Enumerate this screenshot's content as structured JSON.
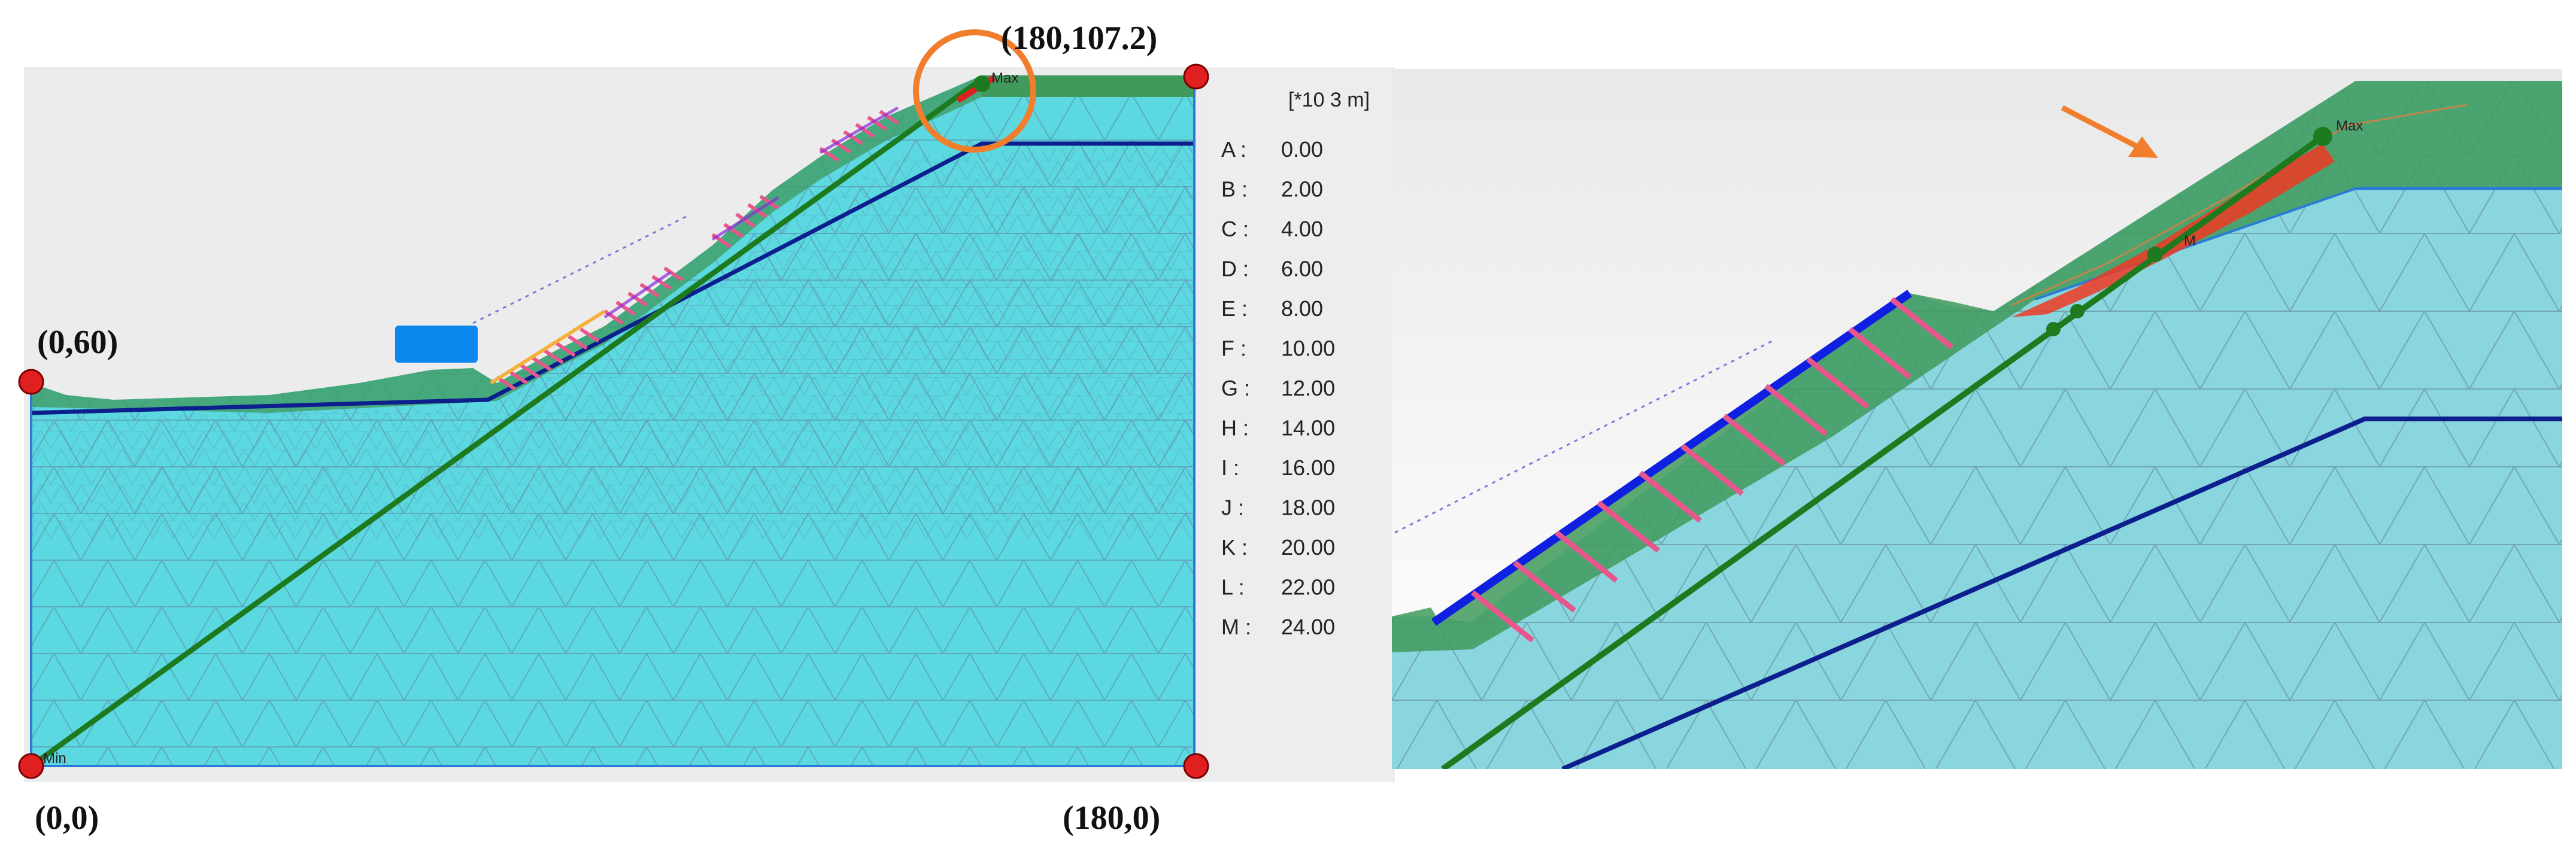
{
  "left_panel": {
    "coordinates": {
      "top_left": "(0,60)",
      "top_right": "(180,107.2)",
      "bottom_left": "(0,0)",
      "bottom_right": "(180,0)"
    },
    "min_label": "Min",
    "max_label": "Max",
    "legend": {
      "unit": "[*10 3 m]",
      "entries": [
        {
          "key": "A",
          "value": "0.00"
        },
        {
          "key": "B",
          "value": "2.00"
        },
        {
          "key": "C",
          "value": "4.00"
        },
        {
          "key": "D",
          "value": "6.00"
        },
        {
          "key": "E",
          "value": "8.00"
        },
        {
          "key": "F",
          "value": "10.00"
        },
        {
          "key": "G",
          "value": "12.00"
        },
        {
          "key": "H",
          "value": "14.00"
        },
        {
          "key": "I",
          "value": "16.00"
        },
        {
          "key": "J",
          "value": "18.00"
        },
        {
          "key": "K",
          "value": "20.00"
        },
        {
          "key": "L",
          "value": "22.00"
        },
        {
          "key": "M",
          "value": "24.00"
        }
      ]
    }
  },
  "right_panel": {
    "max_label": "Max",
    "m_label": "M"
  },
  "colors": {
    "mesh_fill_left": "#5bd8e0",
    "mesh_fill_right": "#8ad6df",
    "green_soil": "#3f9a5c",
    "dark_green_line": "#1e7a1e",
    "layer_line": "#0c1f8c",
    "anchor_pink": "#e8568c",
    "highlight_orange": "#f07e2c",
    "control_point_red": "#e02020",
    "load_blue": "#0a88ee"
  }
}
